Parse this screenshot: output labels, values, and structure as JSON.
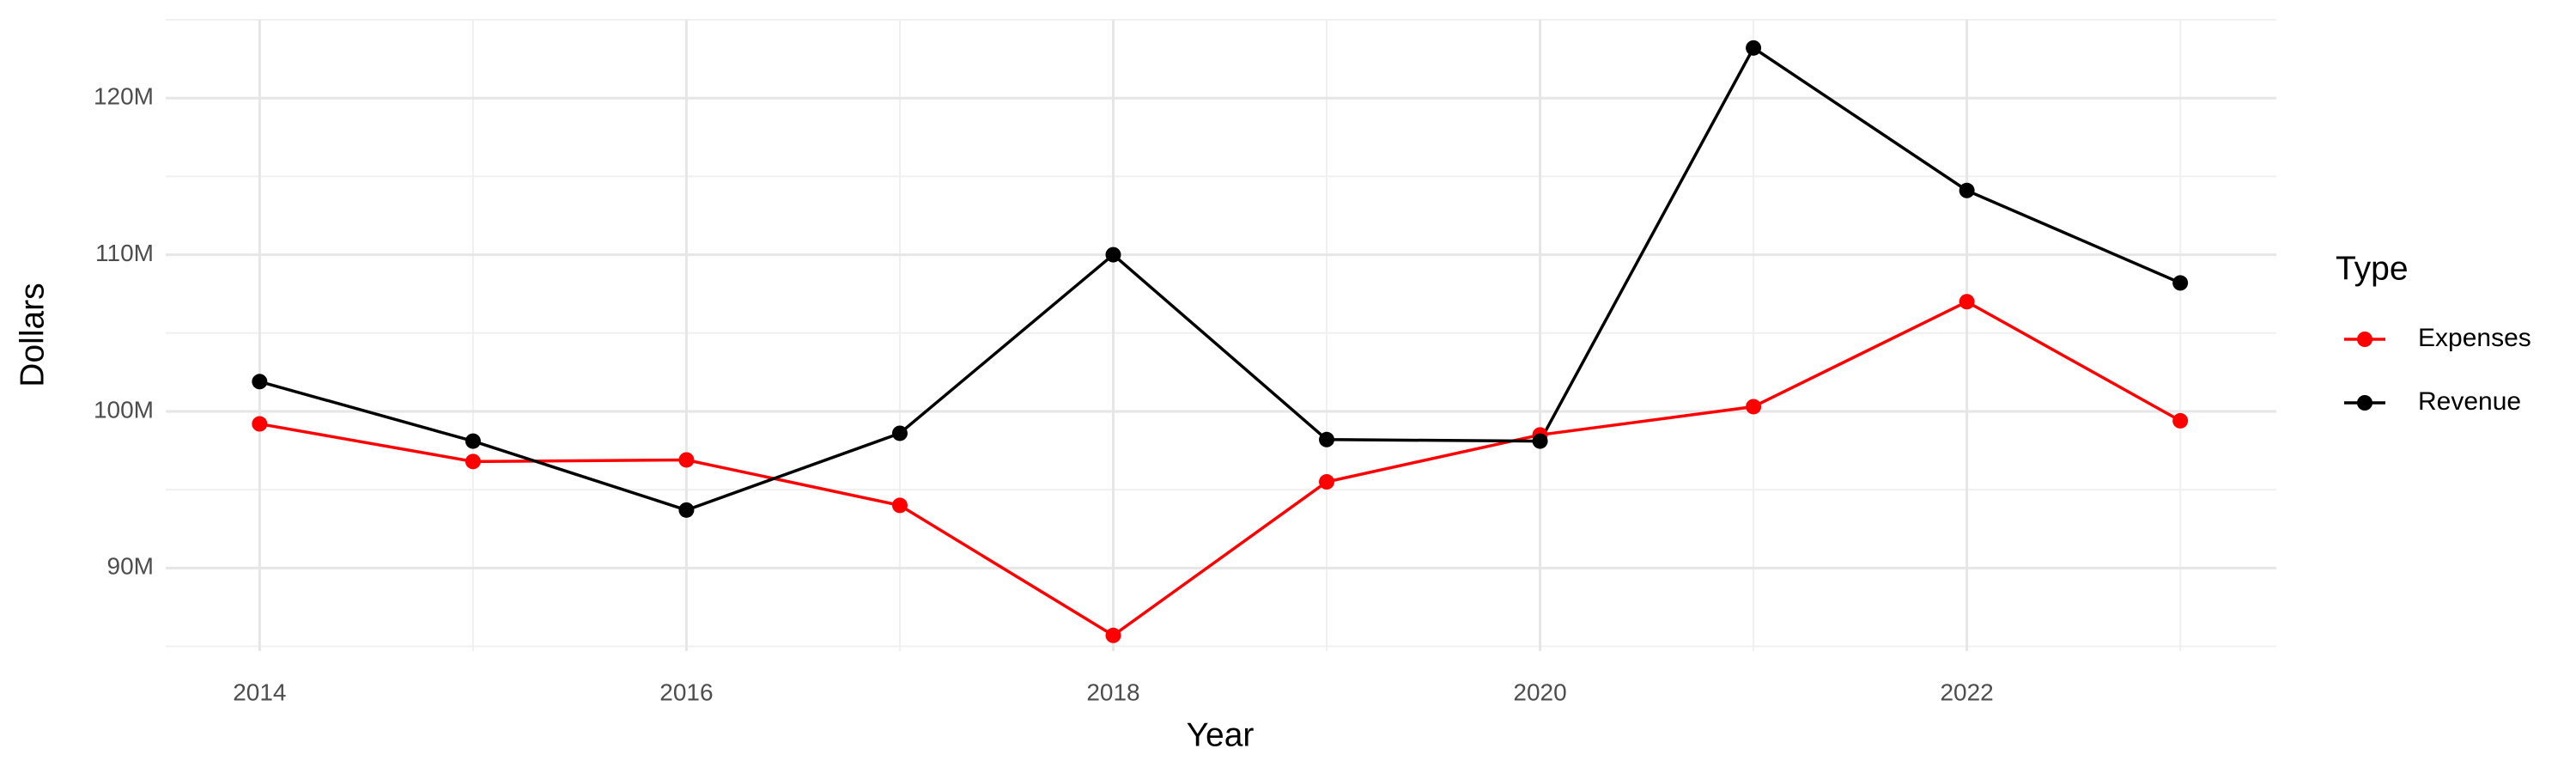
{
  "chart_data": {
    "type": "line",
    "x_label": "Year",
    "y_label": "Dollars",
    "legend_title": "Type",
    "x": [
      2014,
      2015,
      2016,
      2017,
      2018,
      2019,
      2020,
      2021,
      2022,
      2023
    ],
    "series": [
      {
        "name": "Expenses",
        "color": "#ff0000",
        "values": [
          99200000,
          96800000,
          96900000,
          94000000,
          85700000,
          95500000,
          98500000,
          100300000,
          107000000,
          99400000
        ]
      },
      {
        "name": "Revenue",
        "color": "#000000",
        "values": [
          101900000,
          98100000,
          93700000,
          98600000,
          110000000,
          98200000,
          98100000,
          123200000,
          114100000,
          108200000
        ]
      }
    ],
    "xlim": [
      2013.56,
      2023.45
    ],
    "xticks": [
      2014,
      2016,
      2018,
      2020,
      2022
    ],
    "ylim": [
      84700000,
      125000000
    ],
    "yticks": [
      {
        "value": 90000000,
        "label": "90M"
      },
      {
        "value": 100000000,
        "label": "100M"
      },
      {
        "value": 110000000,
        "label": "110M"
      },
      {
        "value": 120000000,
        "label": "120M"
      }
    ],
    "grid": true,
    "legend": "right"
  }
}
